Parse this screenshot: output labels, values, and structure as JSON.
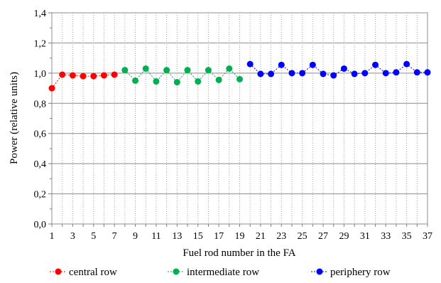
{
  "chart_data": {
    "type": "line",
    "title": "",
    "xlabel": "Fuel rod number in the FA",
    "ylabel": "Power (relative units)",
    "xlim": [
      1,
      37
    ],
    "ylim": [
      0,
      1.4
    ],
    "y_ticks": [
      "0,0",
      "0,2",
      "0,4",
      "0,6",
      "0,8",
      "1,0",
      "1,2",
      "1,4"
    ],
    "x_ticks": [
      "1",
      "3",
      "5",
      "7",
      "9",
      "11",
      "13",
      "15",
      "17",
      "19",
      "21",
      "23",
      "25",
      "27",
      "29",
      "31",
      "33",
      "35",
      "37"
    ],
    "grid": true,
    "legend_position": "bottom",
    "series": [
      {
        "name": "central row",
        "color": "#ff0000",
        "x": [
          1,
          2,
          3,
          4,
          5,
          6,
          7
        ],
        "y": [
          0.9,
          0.99,
          0.985,
          0.98,
          0.98,
          0.985,
          0.99
        ]
      },
      {
        "name": "intermediate row",
        "color": "#00b050",
        "x": [
          8,
          9,
          10,
          11,
          12,
          13,
          14,
          15,
          16,
          17,
          18,
          19
        ],
        "y": [
          1.02,
          0.95,
          1.03,
          0.945,
          1.02,
          0.94,
          1.02,
          0.945,
          1.02,
          0.955,
          1.03,
          0.96
        ]
      },
      {
        "name": "periphery row",
        "color": "#0000ff",
        "x": [
          20,
          21,
          22,
          23,
          24,
          25,
          26,
          27,
          28,
          29,
          30,
          31,
          32,
          33,
          34,
          35,
          36,
          37
        ],
        "y": [
          1.06,
          0.995,
          0.995,
          1.055,
          1.0,
          1.0,
          1.055,
          0.995,
          0.985,
          1.03,
          0.995,
          1.0,
          1.055,
          1.0,
          1.005,
          1.06,
          1.005,
          1.005
        ]
      }
    ]
  }
}
